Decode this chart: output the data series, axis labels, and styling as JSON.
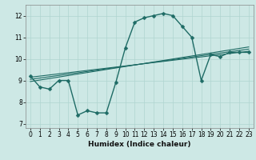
{
  "xlabel": "Humidex (Indice chaleur)",
  "xlim": [
    -0.5,
    23.5
  ],
  "ylim": [
    6.8,
    12.5
  ],
  "yticks": [
    7,
    8,
    9,
    10,
    11,
    12
  ],
  "xticks": [
    0,
    1,
    2,
    3,
    4,
    5,
    6,
    7,
    8,
    9,
    10,
    11,
    12,
    13,
    14,
    15,
    16,
    17,
    18,
    19,
    20,
    21,
    22,
    23
  ],
  "bg_color": "#cde8e5",
  "line_color": "#1e6b65",
  "grid_color": "#b0d4d0",
  "main_line": {
    "x": [
      0,
      1,
      2,
      3,
      4,
      5,
      6,
      7,
      8,
      9,
      10,
      11,
      12,
      13,
      14,
      15,
      16,
      17,
      18,
      19,
      20,
      21,
      22,
      23
    ],
    "y": [
      9.2,
      8.7,
      8.6,
      9.0,
      9.0,
      7.4,
      7.6,
      7.5,
      7.5,
      8.9,
      10.5,
      11.7,
      11.9,
      12.0,
      12.1,
      12.0,
      11.5,
      11.0,
      9.0,
      10.2,
      10.1,
      10.3,
      10.3,
      10.3
    ],
    "linewidth": 1.0,
    "markersize": 2.5
  },
  "straight_lines": [
    {
      "x0": 0,
      "y0": 9.15,
      "x1": 23,
      "y1": 10.35
    },
    {
      "x0": 0,
      "y0": 9.05,
      "x1": 23,
      "y1": 10.45
    },
    {
      "x0": 0,
      "y0": 8.95,
      "x1": 23,
      "y1": 10.55
    }
  ]
}
